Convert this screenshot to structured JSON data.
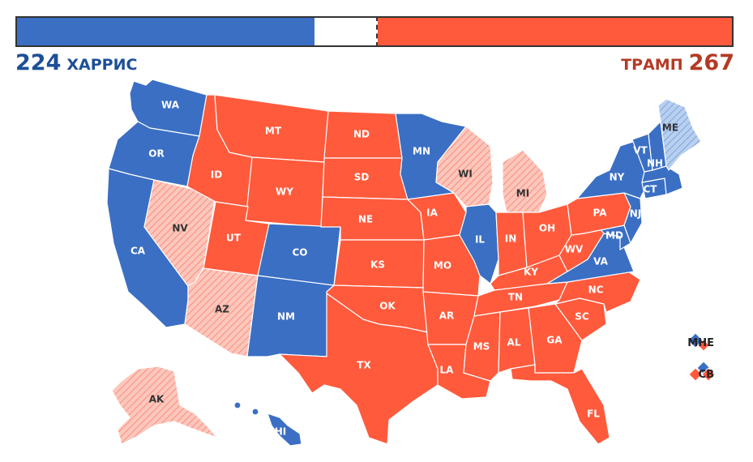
{
  "header": {
    "dem_votes": "224",
    "dem_name": "ХАРРИС",
    "rep_votes": "267",
    "rep_name": "ТРАМП"
  },
  "progress": {
    "dem_fraction": 0.416,
    "rep_fraction": 0.496,
    "threshold_fraction": 0.5
  },
  "colors": {
    "dem": "#3a6fc4",
    "rep": "#ff5a3c",
    "lean_dem": "#b8cfef",
    "lean_rep": "#fbc7bd"
  },
  "legend": {
    "me_label": "МНЕ",
    "ne_label": "СВ"
  },
  "states": {
    "WA": {
      "label": "WA",
      "status": "dem"
    },
    "OR": {
      "label": "OR",
      "status": "dem"
    },
    "CA": {
      "label": "CA",
      "status": "dem"
    },
    "NV": {
      "label": "NV",
      "status": "lean_rep"
    },
    "ID": {
      "label": "ID",
      "status": "rep"
    },
    "MT": {
      "label": "MT",
      "status": "rep"
    },
    "WY": {
      "label": "WY",
      "status": "rep"
    },
    "UT": {
      "label": "UT",
      "status": "rep"
    },
    "AZ": {
      "label": "AZ",
      "status": "lean_rep"
    },
    "CO": {
      "label": "CO",
      "status": "dem"
    },
    "NM": {
      "label": "NM",
      "status": "dem"
    },
    "ND": {
      "label": "ND",
      "status": "rep"
    },
    "SD": {
      "label": "SD",
      "status": "rep"
    },
    "NE": {
      "label": "NE",
      "status": "rep"
    },
    "KS": {
      "label": "KS",
      "status": "rep"
    },
    "OK": {
      "label": "OK",
      "status": "rep"
    },
    "TX": {
      "label": "TX",
      "status": "rep"
    },
    "MN": {
      "label": "MN",
      "status": "dem"
    },
    "IA": {
      "label": "IA",
      "status": "rep"
    },
    "MO": {
      "label": "MO",
      "status": "rep"
    },
    "AR": {
      "label": "AR",
      "status": "rep"
    },
    "LA": {
      "label": "LA",
      "status": "rep"
    },
    "WI": {
      "label": "WI",
      "status": "lean_rep"
    },
    "IL": {
      "label": "IL",
      "status": "dem"
    },
    "MI": {
      "label": "MI",
      "status": "lean_rep"
    },
    "IN": {
      "label": "IN",
      "status": "rep"
    },
    "OH": {
      "label": "OH",
      "status": "rep"
    },
    "KY": {
      "label": "KY",
      "status": "rep"
    },
    "TN": {
      "label": "TN",
      "status": "rep"
    },
    "MS": {
      "label": "MS",
      "status": "rep"
    },
    "AL": {
      "label": "AL",
      "status": "rep"
    },
    "GA": {
      "label": "GA",
      "status": "rep"
    },
    "FL": {
      "label": "FL",
      "status": "rep"
    },
    "SC": {
      "label": "SC",
      "status": "rep"
    },
    "NC": {
      "label": "NC",
      "status": "rep"
    },
    "VA": {
      "label": "VA",
      "status": "dem"
    },
    "WV": {
      "label": "WV",
      "status": "rep"
    },
    "MD": {
      "label": "MD",
      "status": "dem"
    },
    "PA": {
      "label": "PA",
      "status": "rep"
    },
    "NJ": {
      "label": "NJ",
      "status": "dem"
    },
    "NY": {
      "label": "NY",
      "status": "dem"
    },
    "CT": {
      "label": "CT",
      "status": "dem"
    },
    "VT": {
      "label": "VT",
      "status": "dem"
    },
    "NH": {
      "label": "NH",
      "status": "dem"
    },
    "ME": {
      "label": "ME",
      "status": "lean_dem"
    },
    "AK": {
      "label": "AK",
      "status": "lean_rep"
    },
    "HI": {
      "label": "HI",
      "status": "dem"
    }
  }
}
